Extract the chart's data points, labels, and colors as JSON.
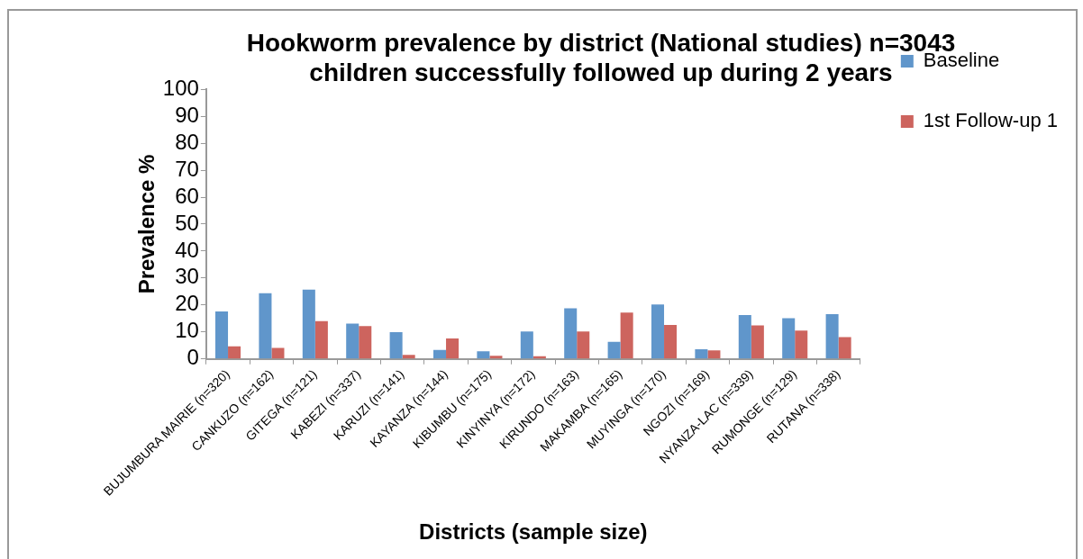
{
  "chart_data": {
    "type": "bar",
    "title": [
      "Hookworm prevalence by district (National studies) n=3043",
      "children successfully followed up during 2 years"
    ],
    "xlabel": "Districts (sample size)",
    "ylabel": "Prevalence %",
    "categories": [
      "BUJUMBURA MAIRIE (n=320)",
      "CANKUZO (n=162)",
      "GITEGA (n=121)",
      "KABEZI (n=337)",
      "KARUZI (n=141)",
      "KAYANZA (n=144)",
      "KIBUMBU (n=175)",
      "KINYINYA (n=172)",
      "KIRUNDO (n=163)",
      "MAKAMBA (n=165)",
      "MUYINGA (n=170)",
      "NGOZI (n=169)",
      "NYANZA-LAC (n=339)",
      "RUMONGE (n=129)",
      "RUTANA (n=338)"
    ],
    "series": [
      {
        "name": "Baseline",
        "color": "#6096cb",
        "values": [
          17.6,
          24.4,
          25.7,
          13.1,
          9.9,
          3.3,
          2.8,
          10.2,
          18.8,
          6.3,
          20.2,
          3.6,
          16.3,
          15.1,
          16.6
        ]
      },
      {
        "name": "1st Follow-up 1",
        "color": "#cd645e",
        "values": [
          4.7,
          4.1,
          14.0,
          12.2,
          1.5,
          7.6,
          1.2,
          1.0,
          10.2,
          17.2,
          12.6,
          3.2,
          12.4,
          10.5,
          8.1
        ]
      }
    ],
    "ylim": [
      0,
      100
    ],
    "yticks": [
      0,
      10,
      20,
      30,
      40,
      50,
      60,
      70,
      80,
      90,
      100
    ],
    "grid": false,
    "legend": "top right"
  }
}
